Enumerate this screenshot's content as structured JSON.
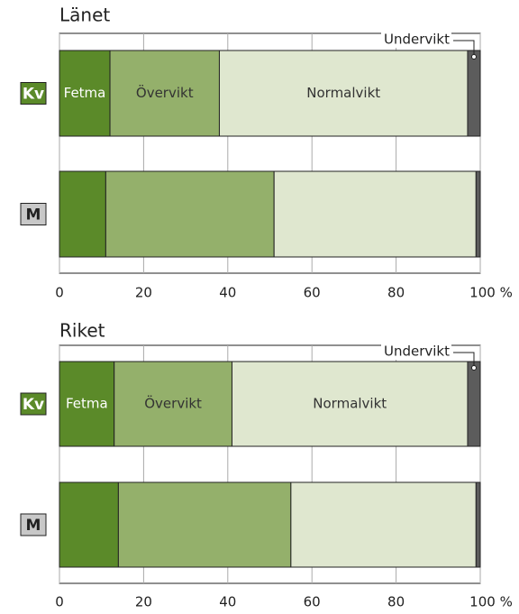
{
  "chart_data": [
    {
      "type": "bar",
      "orientation": "horizontal",
      "stacked": true,
      "title": "Länet",
      "categories": [
        "Kv",
        "M"
      ],
      "series": [
        {
          "name": "Fetma",
          "color": "#5b8a29",
          "values": [
            12,
            11
          ]
        },
        {
          "name": "Övervikt",
          "color": "#94b06b",
          "values": [
            26,
            40
          ]
        },
        {
          "name": "Normalvikt",
          "color": "#dfe7cf",
          "values": [
            59,
            48
          ]
        },
        {
          "name": "Undervikt",
          "color": "#5c5c5c",
          "values": [
            3,
            1
          ]
        }
      ],
      "xlim": [
        0,
        100
      ],
      "xticks": [
        0,
        20,
        40,
        60,
        80,
        {
          "value": 100,
          "label": "100 %"
        }
      ],
      "grid": true
    },
    {
      "type": "bar",
      "orientation": "horizontal",
      "stacked": true,
      "title": "Riket",
      "categories": [
        "Kv",
        "M"
      ],
      "series": [
        {
          "name": "Fetma",
          "color": "#5b8a29",
          "values": [
            13,
            14
          ]
        },
        {
          "name": "Övervikt",
          "color": "#94b06b",
          "values": [
            28,
            41
          ]
        },
        {
          "name": "Normalvikt",
          "color": "#dfe7cf",
          "values": [
            56,
            44
          ]
        },
        {
          "name": "Undervikt",
          "color": "#5c5c5c",
          "values": [
            3,
            1
          ]
        }
      ],
      "xlim": [
        0,
        100
      ],
      "xticks": [
        0,
        20,
        40,
        60,
        80,
        {
          "value": 100,
          "label": "100 %"
        }
      ],
      "grid": true
    }
  ]
}
